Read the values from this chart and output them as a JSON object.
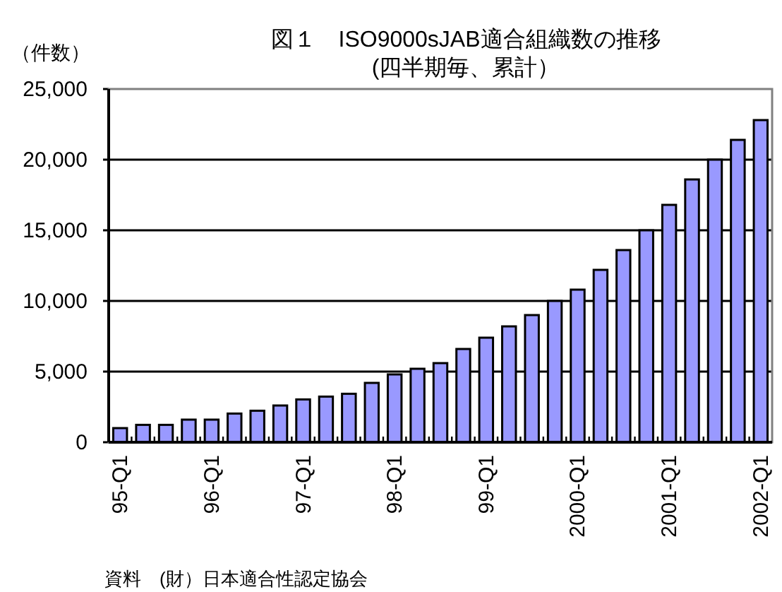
{
  "chart_data": {
    "type": "bar",
    "title": "図１　ISO9000sJAB適合組織数の推移",
    "subtitle": "(四半期毎、累計）",
    "ylabel": "（件数）",
    "categories": [
      "95-Q1",
      null,
      null,
      null,
      "96-Q1",
      null,
      null,
      null,
      "97-Q1",
      null,
      null,
      null,
      "98-Q1",
      null,
      null,
      null,
      "99-Q1",
      null,
      null,
      null,
      "2000-Q1",
      null,
      null,
      null,
      "2001-Q1",
      null,
      null,
      null,
      "2002-Q1"
    ],
    "values": [
      1000,
      1230,
      1230,
      1600,
      1600,
      2030,
      2230,
      2600,
      3030,
      3230,
      3430,
      4200,
      4800,
      5200,
      5600,
      6600,
      7400,
      8200,
      9000,
      10000,
      10800,
      12200,
      13600,
      15000,
      16800,
      18600,
      20000,
      21400,
      22800
    ],
    "color": "#9999ff",
    "ylim": [
      0,
      25000
    ],
    "yticks": [
      0,
      {
        "value": 5000,
        "label": "5,000"
      },
      {
        "value": 10000,
        "label": "10,000"
      },
      {
        "value": 15000,
        "label": "15,000"
      },
      {
        "value": 20000,
        "label": "20,000"
      },
      {
        "value": 25000,
        "label": "25,000"
      }
    ],
    "grid": "y",
    "annotations": [
      "資料　(財）日本適合性認定協会"
    ]
  }
}
